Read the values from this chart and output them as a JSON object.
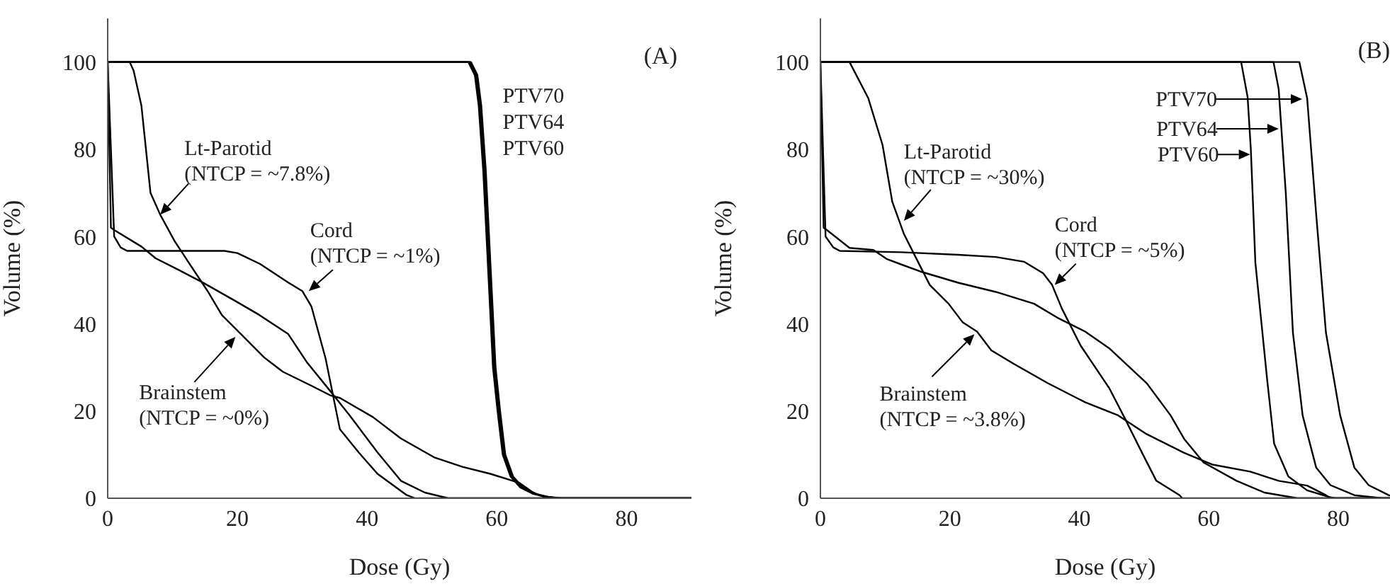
{
  "chart_data": [
    {
      "type": "line",
      "title": "(A)",
      "xlabel": "Dose (Gy)",
      "ylabel": "Volume (%)",
      "xlim": [
        0,
        90
      ],
      "ylim": [
        0,
        110
      ],
      "xticks": [
        0,
        20,
        40,
        60,
        80
      ],
      "yticks": [
        0,
        20,
        40,
        60,
        80,
        100
      ],
      "series": [
        {
          "color": "#000000",
          "x": [
            0,
            56,
            57,
            57.6,
            58.3,
            58.8,
            59.3,
            59.8,
            60.5,
            61.3,
            62.5,
            64,
            66,
            68,
            70,
            90
          ],
          "values": [
            100,
            100,
            97,
            90,
            75,
            60,
            45,
            30,
            20,
            10,
            5,
            2.5,
            1,
            0.3,
            0,
            0
          ]
        },
        {
          "color": "#000000",
          "x": [
            0,
            55.8,
            56.8,
            57.4,
            58.1,
            58.6,
            59.1,
            59.6,
            60.3,
            61.1,
            62.3,
            63.8,
            65.8,
            67.8,
            69.8,
            90
          ],
          "values": [
            100,
            100,
            97,
            90,
            75,
            60,
            45,
            30,
            20,
            10,
            5,
            2.5,
            1,
            0.3,
            0,
            0
          ]
        },
        {
          "color": "#000000",
          "x": [
            0,
            55.6,
            56.6,
            57.2,
            57.9,
            58.4,
            58.9,
            59.4,
            60.1,
            60.9,
            62.1,
            63.6,
            65.6,
            67.6,
            69.6,
            90
          ],
          "values": [
            100,
            100,
            97,
            90,
            75,
            60,
            45,
            30,
            20,
            10,
            5,
            2.5,
            1,
            0.3,
            0,
            0
          ]
        },
        {
          "color": "#000000",
          "x": [
            0,
            3.4,
            4,
            5.2,
            6.6,
            8.1,
            10.3,
            12.5,
            15.4,
            17.6,
            20.5,
            24.1,
            27,
            31.4,
            34.3,
            35.8,
            40.9,
            45.2,
            50.3,
            54.7,
            59,
            63.5,
            65.6,
            67.8,
            90
          ],
          "values": [
            100,
            100,
            98,
            90,
            70,
            65,
            59,
            54,
            47.5,
            42,
            37.7,
            32.3,
            29,
            25.8,
            23.6,
            23,
            18.6,
            13.7,
            9.4,
            7.2,
            5.6,
            3.5,
            1.3,
            0,
            0
          ]
        },
        {
          "color": "#000000",
          "x": [
            0,
            1,
            2,
            3,
            18,
            20,
            23.5,
            27.8,
            30,
            31.4,
            33.6,
            35.8,
            38.7,
            41.6,
            46,
            47.4,
            90
          ],
          "values": [
            100,
            60,
            57.5,
            56.7,
            56.7,
            56.2,
            53.7,
            49.5,
            47.5,
            44,
            32,
            15.8,
            10.5,
            5.6,
            0.8,
            0,
            0
          ]
        },
        {
          "color": "#000000",
          "x": [
            0,
            0.5,
            1,
            5.2,
            7.4,
            11,
            14.6,
            19.7,
            23.4,
            27.8,
            30.7,
            34.3,
            37.2,
            41.6,
            45.2,
            48.9,
            52.5,
            90
          ],
          "values": [
            100,
            62,
            61.5,
            57.7,
            55,
            52.3,
            49.5,
            45.2,
            42,
            37.7,
            31.2,
            24.6,
            19.2,
            10.5,
            4,
            1.3,
            0,
            0
          ]
        }
      ],
      "annotations": [
        {
          "text": "Lt-Parotid\n(NTCP = ~7.8%)",
          "x": 8.1,
          "y": 65
        },
        {
          "text": "Cord\n(NTCP = ~1%)",
          "x": 31,
          "y": 47.5
        },
        {
          "text": "Brainstem\n(NTCP = ~0%)",
          "x": 19.7,
          "y": 37
        },
        {
          "text": "PTV70",
          "x": 58.5,
          "y": 92
        },
        {
          "text": "PTV64",
          "x": 58.5,
          "y": 86
        },
        {
          "text": "PTV60",
          "x": 58.5,
          "y": 80
        }
      ]
    },
    {
      "type": "line",
      "title": "(B)",
      "xlabel": "Dose (Gy)",
      "ylabel": "Volume (%)",
      "xlim": [
        0,
        88
      ],
      "ylim": [
        0,
        110
      ],
      "xticks": [
        0,
        20,
        40,
        60,
        80
      ],
      "yticks": [
        0,
        20,
        40,
        60,
        80,
        100
      ],
      "series": [
        {
          "color": "#000000",
          "x": [
            0,
            74,
            75.2,
            76.6,
            78.1,
            80.3,
            82.5,
            84.7,
            87.8,
            88
          ],
          "values": [
            100,
            100,
            91.7,
            65,
            38,
            19,
            7,
            3,
            0.7,
            0.6
          ]
        },
        {
          "color": "#000000",
          "x": [
            0,
            70,
            70.8,
            71.9,
            73,
            74.5,
            76.6,
            78.8,
            82.5,
            86.8,
            88
          ],
          "values": [
            100,
            100,
            93.8,
            70,
            38,
            19,
            7,
            3,
            0.7,
            0,
            0
          ]
        },
        {
          "color": "#000000",
          "x": [
            0,
            65,
            66,
            66.5,
            67.2,
            69,
            70.1,
            72.3,
            75.2,
            78.8,
            79.6,
            88
          ],
          "values": [
            100,
            100,
            92,
            80,
            54,
            27.5,
            12.5,
            5,
            1.8,
            0.2,
            0,
            0
          ]
        },
        {
          "color": "#000000",
          "x": [
            0,
            4.5,
            7.4,
            9.6,
            11.1,
            12.9,
            14.7,
            16.9,
            19.8,
            22,
            24.2,
            26.4,
            30,
            35.1,
            40.9,
            46,
            50.4,
            56.2,
            60.6,
            66.4,
            70.8,
            75.2,
            78.1,
            78.8,
            88
          ],
          "values": [
            100,
            100,
            91.7,
            81,
            68,
            60.6,
            55.3,
            48.9,
            44.6,
            40.3,
            38.2,
            33.9,
            30.7,
            26.4,
            22,
            19,
            14.7,
            10.4,
            7.7,
            6.1,
            4,
            2.9,
            0.7,
            0,
            0
          ]
        },
        {
          "color": "#000000",
          "x": [
            0,
            0.8,
            2,
            3,
            12.5,
            21.3,
            27.1,
            31.5,
            34.4,
            35.8,
            37.3,
            40.2,
            44.6,
            46.8,
            49.7,
            51.9,
            55.5,
            55.9,
            88
          ],
          "values": [
            100,
            60,
            57.5,
            56.7,
            56.4,
            55.8,
            55.3,
            54.2,
            51.6,
            48.9,
            43.5,
            35,
            25.3,
            19,
            10.4,
            4,
            0.7,
            0,
            0
          ]
        },
        {
          "color": "#000000",
          "x": [
            0,
            0.5,
            1,
            4.5,
            8.2,
            10.3,
            15.4,
            21.3,
            27.1,
            33,
            36.6,
            40.9,
            44.6,
            50.4,
            54.1,
            56.2,
            59.2,
            64.3,
            68.6,
            73.7,
            88
          ],
          "values": [
            100,
            62,
            61.5,
            57.4,
            56.9,
            54.8,
            52,
            49.4,
            47.3,
            44.6,
            41.4,
            38.2,
            34.4,
            26.4,
            19,
            13.6,
            8.2,
            4,
            1.3,
            0,
            0
          ]
        }
      ],
      "annotations": [
        {
          "text": "Lt-Parotid\n(NTCP = ~30%)",
          "x": 12.9,
          "y": 63.6
        },
        {
          "text": "Cord\n(NTCP = ~5%)",
          "x": 36.2,
          "y": 48.9
        },
        {
          "text": "Brainstem\n(NTCP = ~3.8%)",
          "x": 23.8,
          "y": 37.6
        },
        "PTV70",
        {
          "text": "PTV64",
          "x": 70.8,
          "y": 84.7
        },
        {
          "text": "PTV60",
          "x": 66.4,
          "y": 78.8
        }
      ]
    }
  ]
}
